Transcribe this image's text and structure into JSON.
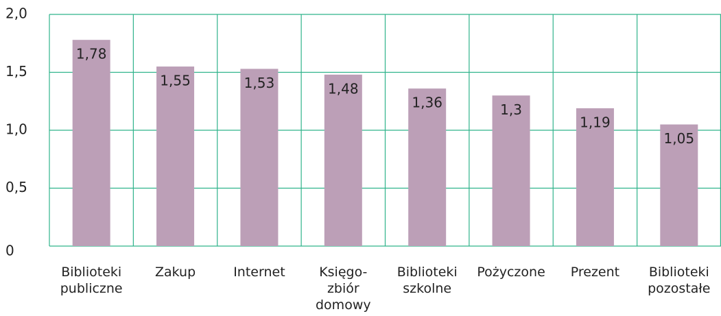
{
  "chart_data": {
    "type": "bar",
    "categories": [
      "Biblioteki\npubliczne",
      "Zakup",
      "Internet",
      "Księgo-\nzbiór\ndomowy",
      "Biblioteki\nszkolne",
      "Pożyczone",
      "Prezent",
      "Biblioteki\npozostałe"
    ],
    "values": [
      1.78,
      1.55,
      1.53,
      1.48,
      1.36,
      1.3,
      1.19,
      1.05
    ],
    "value_labels": [
      "1,78",
      "1,55",
      "1,53",
      "1,48",
      "1,36",
      "1,3",
      "1,19",
      "1,05"
    ],
    "color": "#bc9fb7",
    "ylim": [
      0,
      2
    ],
    "yticks": [
      0,
      {
        "value": 0.5,
        "label": "0,5"
      },
      {
        "value": 1,
        "label": "1,0"
      },
      {
        "value": 1.5,
        "label": "1,5"
      },
      {
        "value": 2,
        "label": "2,0"
      }
    ],
    "grid": true
  }
}
